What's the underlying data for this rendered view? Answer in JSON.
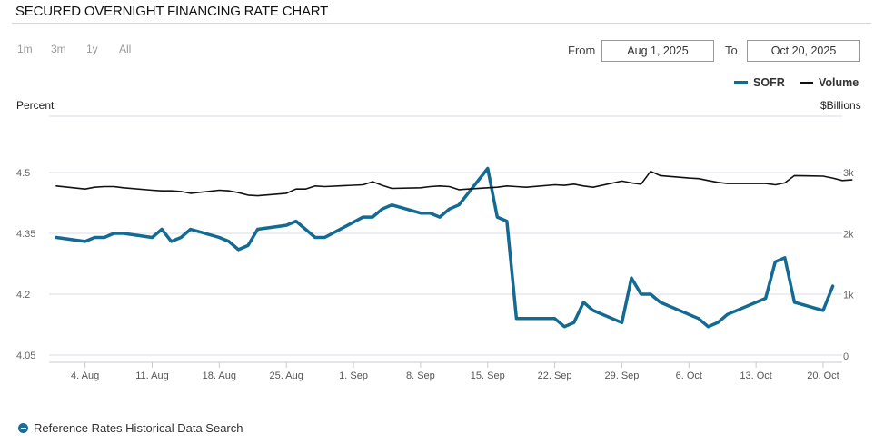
{
  "page": {
    "title": "SECURED OVERNIGHT FINANCING RATE CHART",
    "range_buttons": [
      "1m",
      "3m",
      "1y",
      "All"
    ],
    "from_label": "From",
    "from_value": "Aug 1, 2025",
    "to_label": "To",
    "to_value": "Oct 20, 2025",
    "footer_link": "Reference Rates Historical Data Search",
    "colors": {
      "sofr": "#136b93",
      "volume": "#111111",
      "grid": "#d9dde3",
      "accent": "#1d6d94"
    }
  },
  "chart_data": {
    "type": "line",
    "title": "SECURED OVERNIGHT FINANCING RATE CHART",
    "left_axis_label": "Percent",
    "right_axis_label": "$Billions",
    "left_ylim": [
      4.05,
      4.5
    ],
    "right_ylim": [
      0,
      3000
    ],
    "left_ticks": [
      {
        "value": 4.5,
        "label": "4.5"
      },
      {
        "value": 4.35,
        "label": "4.35"
      },
      {
        "value": 4.2,
        "label": "4.2"
      },
      {
        "value": 4.05,
        "label": "4.05"
      }
    ],
    "right_ticks": [
      {
        "value": 3000,
        "label": "3k"
      },
      {
        "value": 2000,
        "label": "2k"
      },
      {
        "value": 1000,
        "label": "1k"
      },
      {
        "value": 0,
        "label": "0"
      }
    ],
    "x_ticks": [
      {
        "date": "2025-08-04",
        "label": "4. Aug"
      },
      {
        "date": "2025-08-11",
        "label": "11. Aug"
      },
      {
        "date": "2025-08-18",
        "label": "18. Aug"
      },
      {
        "date": "2025-08-25",
        "label": "25. Aug"
      },
      {
        "date": "2025-09-01",
        "label": "1. Sep"
      },
      {
        "date": "2025-09-08",
        "label": "8. Sep"
      },
      {
        "date": "2025-09-15",
        "label": "15. Sep"
      },
      {
        "date": "2025-09-22",
        "label": "22. Sep"
      },
      {
        "date": "2025-09-29",
        "label": "29. Sep"
      },
      {
        "date": "2025-10-06",
        "label": "6. Oct"
      },
      {
        "date": "2025-10-13",
        "label": "13. Oct"
      },
      {
        "date": "2025-10-20",
        "label": "20. Oct"
      }
    ],
    "legend_placement": "top-right",
    "grid": true,
    "series": [
      {
        "name": "SOFR",
        "axis": "left",
        "color": "#136b93",
        "points": [
          [
            "2025-08-01",
            4.34
          ],
          [
            "2025-08-04",
            4.33
          ],
          [
            "2025-08-05",
            4.34
          ],
          [
            "2025-08-06",
            4.34
          ],
          [
            "2025-08-07",
            4.35
          ],
          [
            "2025-08-08",
            4.35
          ],
          [
            "2025-08-11",
            4.34
          ],
          [
            "2025-08-12",
            4.36
          ],
          [
            "2025-08-13",
            4.33
          ],
          [
            "2025-08-14",
            4.34
          ],
          [
            "2025-08-15",
            4.36
          ],
          [
            "2025-08-18",
            4.34
          ],
          [
            "2025-08-19",
            4.33
          ],
          [
            "2025-08-20",
            4.31
          ],
          [
            "2025-08-21",
            4.32
          ],
          [
            "2025-08-22",
            4.36
          ],
          [
            "2025-08-25",
            4.37
          ],
          [
            "2025-08-26",
            4.38
          ],
          [
            "2025-08-27",
            4.36
          ],
          [
            "2025-08-28",
            4.34
          ],
          [
            "2025-08-29",
            4.34
          ],
          [
            "2025-09-02",
            4.39
          ],
          [
            "2025-09-03",
            4.39
          ],
          [
            "2025-09-04",
            4.41
          ],
          [
            "2025-09-05",
            4.42
          ],
          [
            "2025-09-08",
            4.4
          ],
          [
            "2025-09-09",
            4.4
          ],
          [
            "2025-09-10",
            4.39
          ],
          [
            "2025-09-11",
            4.41
          ],
          [
            "2025-09-12",
            4.42
          ],
          [
            "2025-09-15",
            4.51
          ],
          [
            "2025-09-16",
            4.39
          ],
          [
            "2025-09-17",
            4.38
          ],
          [
            "2025-09-18",
            4.14
          ],
          [
            "2025-09-19",
            4.14
          ],
          [
            "2025-09-22",
            4.14
          ],
          [
            "2025-09-23",
            4.12
          ],
          [
            "2025-09-24",
            4.13
          ],
          [
            "2025-09-25",
            4.18
          ],
          [
            "2025-09-26",
            4.16
          ],
          [
            "2025-09-29",
            4.13
          ],
          [
            "2025-09-30",
            4.24
          ],
          [
            "2025-10-01",
            4.2
          ],
          [
            "2025-10-02",
            4.2
          ],
          [
            "2025-10-03",
            4.18
          ],
          [
            "2025-10-06",
            4.15
          ],
          [
            "2025-10-07",
            4.14
          ],
          [
            "2025-10-08",
            4.12
          ],
          [
            "2025-10-09",
            4.13
          ],
          [
            "2025-10-10",
            4.15
          ],
          [
            "2025-10-14",
            4.19
          ],
          [
            "2025-10-15",
            4.28
          ],
          [
            "2025-10-16",
            4.29
          ],
          [
            "2025-10-17",
            4.18
          ],
          [
            "2025-10-20",
            4.16
          ],
          [
            "2025-10-21",
            4.22
          ]
        ]
      },
      {
        "name": "Volume",
        "axis": "right",
        "color": "#111111",
        "points": [
          [
            "2025-08-01",
            2780
          ],
          [
            "2025-08-04",
            2730
          ],
          [
            "2025-08-05",
            2760
          ],
          [
            "2025-08-06",
            2770
          ],
          [
            "2025-08-07",
            2770
          ],
          [
            "2025-08-08",
            2750
          ],
          [
            "2025-08-11",
            2710
          ],
          [
            "2025-08-12",
            2700
          ],
          [
            "2025-08-13",
            2700
          ],
          [
            "2025-08-14",
            2690
          ],
          [
            "2025-08-15",
            2660
          ],
          [
            "2025-08-18",
            2710
          ],
          [
            "2025-08-19",
            2700
          ],
          [
            "2025-08-20",
            2670
          ],
          [
            "2025-08-21",
            2630
          ],
          [
            "2025-08-22",
            2620
          ],
          [
            "2025-08-25",
            2660
          ],
          [
            "2025-08-26",
            2730
          ],
          [
            "2025-08-27",
            2730
          ],
          [
            "2025-08-28",
            2780
          ],
          [
            "2025-08-29",
            2770
          ],
          [
            "2025-09-02",
            2800
          ],
          [
            "2025-09-03",
            2850
          ],
          [
            "2025-09-04",
            2790
          ],
          [
            "2025-09-05",
            2740
          ],
          [
            "2025-09-08",
            2750
          ],
          [
            "2025-09-09",
            2770
          ],
          [
            "2025-09-10",
            2780
          ],
          [
            "2025-09-11",
            2770
          ],
          [
            "2025-09-12",
            2720
          ],
          [
            "2025-09-15",
            2750
          ],
          [
            "2025-09-16",
            2760
          ],
          [
            "2025-09-17",
            2780
          ],
          [
            "2025-09-18",
            2770
          ],
          [
            "2025-09-19",
            2760
          ],
          [
            "2025-09-22",
            2800
          ],
          [
            "2025-09-23",
            2790
          ],
          [
            "2025-09-24",
            2810
          ],
          [
            "2025-09-25",
            2780
          ],
          [
            "2025-09-26",
            2760
          ],
          [
            "2025-09-29",
            2860
          ],
          [
            "2025-09-30",
            2830
          ],
          [
            "2025-10-01",
            2810
          ],
          [
            "2025-10-02",
            3020
          ],
          [
            "2025-10-03",
            2950
          ],
          [
            "2025-10-06",
            2910
          ],
          [
            "2025-10-07",
            2900
          ],
          [
            "2025-10-08",
            2870
          ],
          [
            "2025-10-09",
            2840
          ],
          [
            "2025-10-10",
            2820
          ],
          [
            "2025-10-14",
            2820
          ],
          [
            "2025-10-15",
            2800
          ],
          [
            "2025-10-16",
            2830
          ],
          [
            "2025-10-17",
            2950
          ],
          [
            "2025-10-20",
            2940
          ],
          [
            "2025-10-21",
            2910
          ],
          [
            "2025-10-22",
            2870
          ],
          [
            "2025-10-23",
            2880
          ]
        ]
      }
    ]
  }
}
